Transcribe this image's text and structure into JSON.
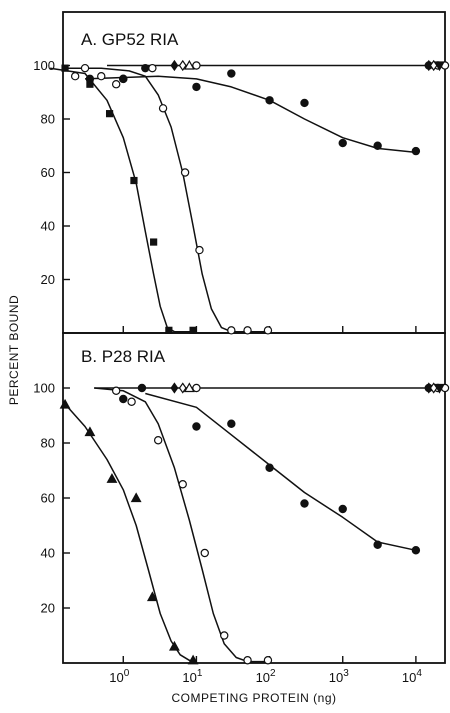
{
  "figure": {
    "ylabel": "PERCENT BOUND",
    "xlabel": "COMPETING PROTEIN (ng)"
  },
  "chart_data": [
    {
      "type": "scatter",
      "title": "A. GP52 RIA",
      "xscale": "log",
      "xlim": [
        0.15,
        25000
      ],
      "ylim": [
        0,
        120
      ],
      "yticks": [
        20,
        40,
        60,
        80,
        100
      ],
      "xticks": [
        {
          "value": 1,
          "base": "10",
          "exp": "0"
        },
        {
          "value": 10,
          "base": "10",
          "exp": "1"
        },
        {
          "value": 100,
          "base": "10",
          "exp": "2"
        },
        {
          "value": 1000,
          "base": "10",
          "exp": "3"
        },
        {
          "value": 10000,
          "base": "10",
          "exp": "4"
        }
      ],
      "series": [
        {
          "marker": "filled-square",
          "points": [
            [
              0.16,
              99
            ],
            [
              0.35,
              93
            ],
            [
              0.65,
              82
            ],
            [
              1.4,
              57
            ],
            [
              2.6,
              34
            ],
            [
              4.2,
              1
            ],
            [
              9,
              1
            ]
          ],
          "curve": [
            [
              0.1,
              99
            ],
            [
              0.3,
              97
            ],
            [
              0.6,
              87
            ],
            [
              1.0,
              73
            ],
            [
              1.5,
              56
            ],
            [
              2,
              38
            ],
            [
              2.6,
              22
            ],
            [
              3.2,
              10
            ],
            [
              4.0,
              2
            ],
            [
              5,
              0.5
            ],
            [
              10,
              0.5
            ]
          ]
        },
        {
          "marker": "open-circle",
          "points": [
            [
              0.22,
              96
            ],
            [
              0.3,
              99
            ],
            [
              0.5,
              96
            ],
            [
              0.8,
              93
            ],
            [
              1,
              95
            ],
            [
              2.5,
              99
            ],
            [
              3.5,
              84
            ],
            [
              7,
              60
            ],
            [
              11,
              31
            ],
            [
              30,
              1
            ],
            [
              50,
              1
            ],
            [
              95,
              1
            ]
          ],
          "curve": [
            [
              0.15,
              99
            ],
            [
              0.5,
              99
            ],
            [
              1.2,
              98
            ],
            [
              2,
              96
            ],
            [
              3,
              89
            ],
            [
              4.5,
              77
            ],
            [
              6.5,
              60
            ],
            [
              9,
              40
            ],
            [
              12,
              22
            ],
            [
              16,
              9
            ],
            [
              22,
              2
            ],
            [
              30,
              0.5
            ],
            [
              100,
              0.5
            ]
          ]
        },
        {
          "marker": "filled-circle",
          "points": [
            [
              0.35,
              95
            ],
            [
              1,
              95
            ],
            [
              2,
              99
            ],
            [
              10,
              92
            ],
            [
              30,
              97
            ],
            [
              100,
              87
            ],
            [
              300,
              86
            ],
            [
              1000,
              71
            ],
            [
              3000,
              70
            ],
            [
              10000,
              68
            ]
          ],
          "curve": [
            [
              0.3,
              95
            ],
            [
              1,
              95.5
            ],
            [
              3,
              96
            ],
            [
              10,
              95
            ],
            [
              30,
              92
            ],
            [
              100,
              87
            ],
            [
              300,
              80
            ],
            [
              1000,
              73
            ],
            [
              3000,
              69
            ],
            [
              10000,
              67.5
            ]
          ]
        },
        {
          "marker": "open-circle",
          "points": [
            [
              10,
              100
            ],
            [
              15000,
              100
            ],
            [
              20000,
              100
            ],
            [
              25000,
              100
            ]
          ],
          "curve": [
            [
              0.6,
              100
            ],
            [
              25000,
              100
            ]
          ]
        },
        {
          "marker": "filled-diamond",
          "points": [
            [
              5,
              100
            ],
            [
              15000,
              100
            ]
          ],
          "curve": []
        },
        {
          "marker": "open-diamond",
          "points": [
            [
              6.5,
              100
            ],
            [
              17500,
              100
            ]
          ],
          "curve": []
        },
        {
          "marker": "open-triangle",
          "points": [
            [
              8,
              100
            ]
          ],
          "curve": []
        },
        {
          "marker": "filled-triangle-down",
          "points": [
            [
              21000,
              100
            ]
          ],
          "curve": []
        }
      ]
    },
    {
      "type": "scatter",
      "title": "B. P28 RIA",
      "xscale": "log",
      "xlim": [
        0.15,
        25000
      ],
      "ylim": [
        0,
        120
      ],
      "yticks": [
        20,
        40,
        60,
        80,
        100
      ],
      "xticks": [
        {
          "value": 1,
          "base": "10",
          "exp": "0"
        },
        {
          "value": 10,
          "base": "10",
          "exp": "1"
        },
        {
          "value": 100,
          "base": "10",
          "exp": "2"
        },
        {
          "value": 1000,
          "base": "10",
          "exp": "3"
        },
        {
          "value": 10000,
          "base": "10",
          "exp": "4"
        }
      ],
      "series": [
        {
          "marker": "filled-triangle",
          "points": [
            [
              0.16,
              94
            ],
            [
              0.35,
              84
            ],
            [
              0.7,
              67
            ],
            [
              1.5,
              60
            ],
            [
              2.5,
              24
            ],
            [
              5,
              6
            ],
            [
              9,
              1
            ]
          ],
          "curve": [
            [
              0.15,
              95
            ],
            [
              0.3,
              86
            ],
            [
              0.6,
              74
            ],
            [
              1,
              63
            ],
            [
              1.5,
              50
            ],
            [
              2.2,
              34
            ],
            [
              3.2,
              18
            ],
            [
              4.5,
              8
            ],
            [
              6,
              3
            ],
            [
              8,
              1
            ],
            [
              10,
              0.5
            ]
          ]
        },
        {
          "marker": "open-circle",
          "points": [
            [
              0.8,
              99
            ],
            [
              1.3,
              95
            ],
            [
              3,
              81
            ],
            [
              6.5,
              65
            ],
            [
              13,
              40
            ],
            [
              24,
              10
            ],
            [
              50,
              1
            ],
            [
              95,
              1
            ]
          ],
          "curve": [
            [
              0.4,
              100
            ],
            [
              1,
              99
            ],
            [
              2,
              95
            ],
            [
              3,
              87
            ],
            [
              5,
              71
            ],
            [
              8,
              52
            ],
            [
              12,
              34
            ],
            [
              17,
              18
            ],
            [
              24,
              7
            ],
            [
              35,
              2
            ],
            [
              50,
              0.5
            ],
            [
              100,
              0.5
            ]
          ]
        },
        {
          "marker": "filled-circle",
          "points": [
            [
              1,
              96
            ],
            [
              1.8,
              100
            ],
            [
              10,
              86
            ],
            [
              30,
              87
            ],
            [
              100,
              71
            ],
            [
              300,
              58
            ],
            [
              1000,
              56
            ],
            [
              3000,
              43
            ],
            [
              10000,
              41
            ]
          ],
          "curve": [
            [
              2,
              98
            ],
            [
              10,
              93
            ],
            [
              30,
              83
            ],
            [
              100,
              72
            ],
            [
              300,
              62
            ],
            [
              1000,
              53
            ],
            [
              3000,
              44
            ],
            [
              10000,
              41
            ]
          ]
        },
        {
          "marker": "open-circle",
          "points": [
            [
              10,
              100
            ],
            [
              15000,
              100
            ],
            [
              20000,
              100
            ],
            [
              25000,
              100
            ]
          ],
          "curve": [
            [
              0.4,
              100
            ],
            [
              25000,
              100
            ]
          ]
        },
        {
          "marker": "filled-diamond",
          "points": [
            [
              5,
              100
            ],
            [
              15000,
              100
            ]
          ],
          "curve": []
        },
        {
          "marker": "open-diamond",
          "points": [
            [
              6.5,
              100
            ],
            [
              17500,
              100
            ]
          ],
          "curve": []
        },
        {
          "marker": "open-triangle",
          "points": [
            [
              8,
              100
            ]
          ],
          "curve": []
        },
        {
          "marker": "filled-triangle-down",
          "points": [
            [
              21000,
              100
            ]
          ],
          "curve": []
        }
      ]
    }
  ]
}
